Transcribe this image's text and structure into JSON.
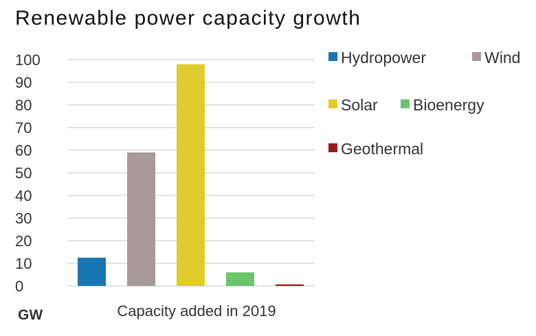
{
  "chart_data": {
    "type": "bar",
    "title": "Renewable power capacity growth",
    "unit_label": "GW",
    "xlabel": "Capacity added in 2019",
    "ylabel": "",
    "ylim": [
      0,
      100
    ],
    "yticks": [
      "0",
      "10",
      "20",
      "30",
      "40",
      "50",
      "60",
      "70",
      "80",
      "90",
      "100"
    ],
    "grid": true,
    "legend_position": "right",
    "series": [
      {
        "name": "Hydropower",
        "value": 12.5,
        "color": "#1a75b3"
      },
      {
        "name": "Wind",
        "value": 59,
        "color": "#a89a9a"
      },
      {
        "name": "Solar",
        "value": 98,
        "color": "#e0cc2c"
      },
      {
        "name": "Bioenergy",
        "value": 6,
        "color": "#6cc36c"
      },
      {
        "name": "Geothermal",
        "value": 0.7,
        "color": "#9b1c1c"
      }
    ]
  }
}
